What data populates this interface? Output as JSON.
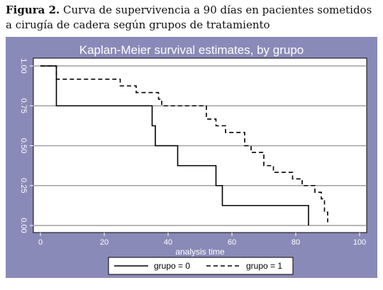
{
  "caption": {
    "label": "Figura 2.",
    "text": "Curva de supervivencia a 90 días en pacientes sometidos a cirugía de cadera según grupos de tratamiento"
  },
  "colors": {
    "frame_background": "#8a8ab8",
    "plot_background": "#ffffff",
    "gridline": "#a0a0a0",
    "line": "#000000"
  },
  "chart_data": {
    "type": "line",
    "title": "Kaplan-Meier survival estimates, by grupo",
    "xlabel": "analysis time",
    "ylabel": "",
    "xlim": [
      0,
      100
    ],
    "ylim": [
      0,
      1
    ],
    "xticks": [
      0,
      20,
      40,
      60,
      80,
      100
    ],
    "yticks": [
      0.0,
      0.25,
      0.5,
      0.75,
      1.0
    ],
    "ytick_labels": [
      "0.00",
      "0.25",
      "0.50",
      "0.75",
      "1.00"
    ],
    "grid": true,
    "legend_position": "bottom",
    "step": true,
    "series": [
      {
        "name": "grupo = 0",
        "style": "solid",
        "x": [
          0,
          5,
          35,
          36,
          43,
          55,
          57,
          84
        ],
        "y": [
          1.0,
          0.75,
          0.625,
          0.5,
          0.375,
          0.25,
          0.125,
          0.0
        ],
        "end_x": 84
      },
      {
        "name": "grupo = 1",
        "style": "dashed",
        "x": [
          0,
          5,
          25,
          30,
          37,
          38,
          52,
          55,
          58,
          64,
          66,
          70,
          73,
          79,
          82,
          86,
          88,
          89
        ],
        "y": [
          1.0,
          0.917,
          0.875,
          0.833,
          0.792,
          0.75,
          0.667,
          0.625,
          0.583,
          0.5,
          0.458,
          0.375,
          0.333,
          0.292,
          0.25,
          0.208,
          0.167,
          0.083
        ],
        "end_x": 90,
        "end_y": 0.02
      }
    ]
  }
}
